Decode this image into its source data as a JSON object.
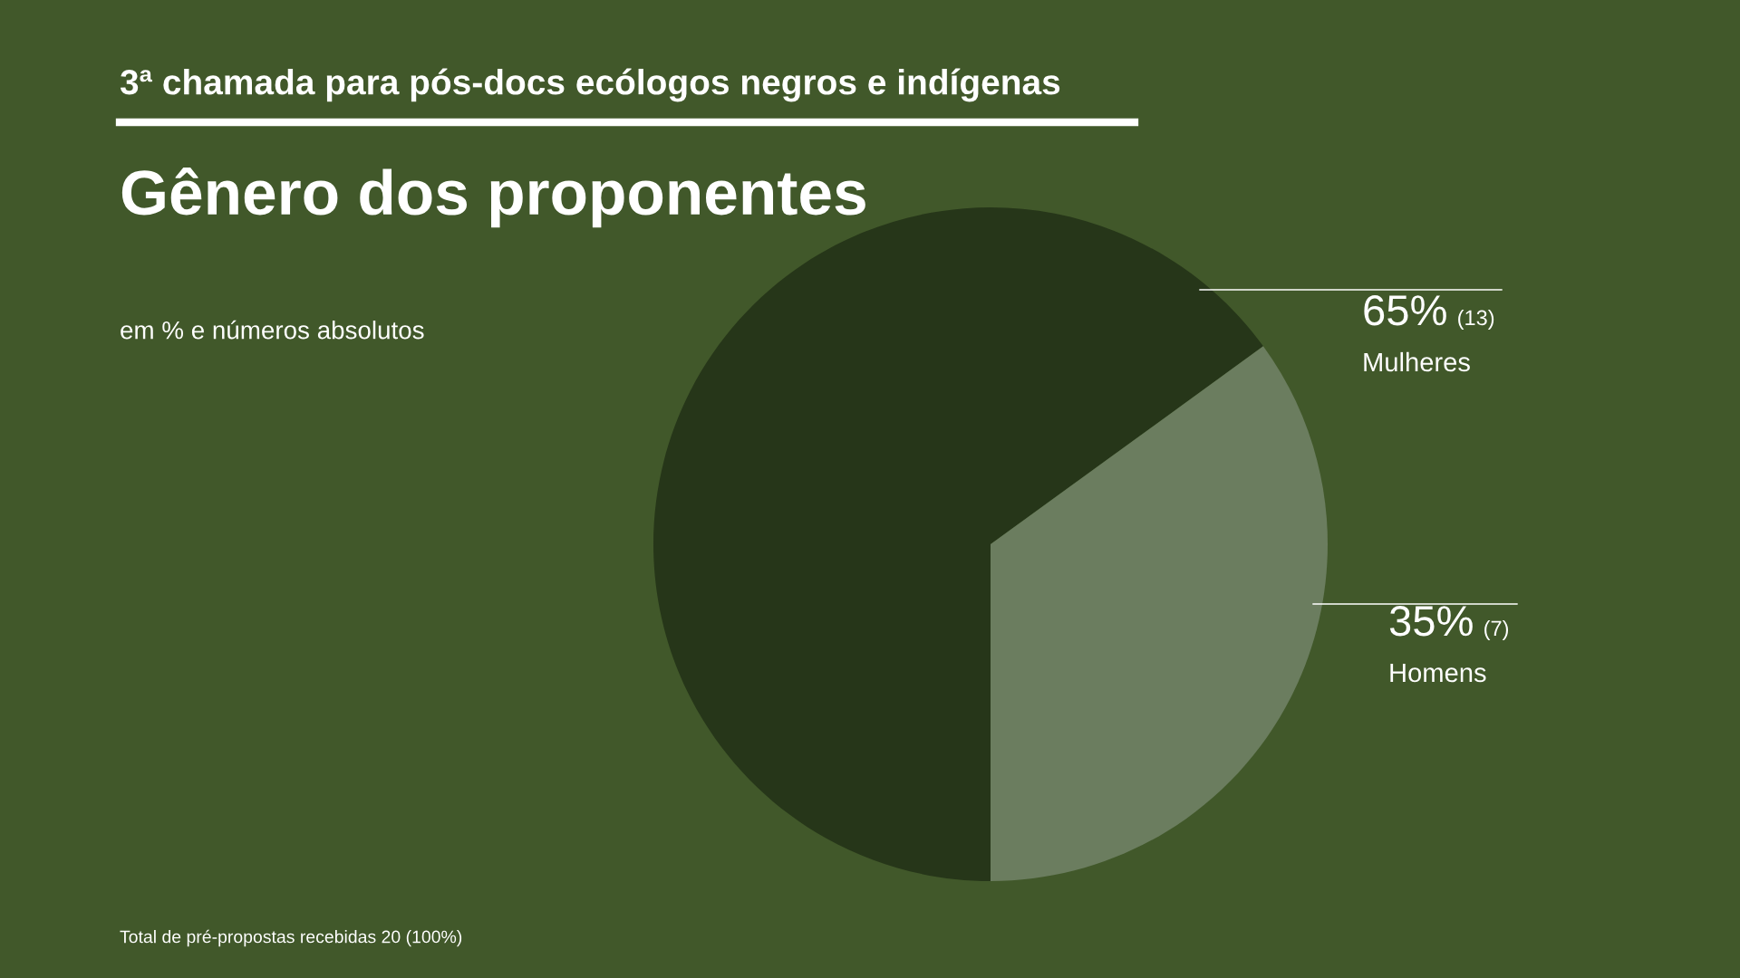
{
  "chart_data": {
    "type": "pie",
    "title": "Gênero dos proponentes",
    "subtitle": "em % e números absolutos",
    "categories": [
      "Mulheres",
      "Homens"
    ],
    "values": [
      65,
      35
    ],
    "colors": [
      "#263619",
      "#6b7d5f"
    ],
    "value_labels": [
      "65% (13)",
      "35% (7)"
    ],
    "annotations": [
      "3ª chamada para pós-docs ecólogos negros e indígenas",
      "Total de pré-propostas recebidas 20 (100%)"
    ],
    "legend": false
  }
}
